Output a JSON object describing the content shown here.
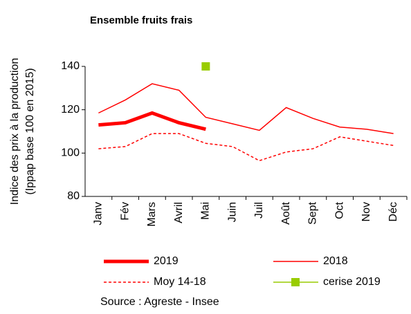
{
  "chart_data": {
    "type": "line",
    "title": "Ensemble fruits frais",
    "y_label": [
      "Indice des prix à la production",
      "(Ippap base 100 en 2015)"
    ],
    "categories": [
      "Janv",
      "Fév",
      "Mars",
      "Avril",
      "Mai",
      "Juin",
      "Juil",
      "Août",
      "Sept",
      "Oct",
      "Nov",
      "Déc"
    ],
    "series": [
      {
        "name": "2019",
        "color": "#ff0000",
        "linewidth": 5,
        "linestyle": "solid",
        "values": [
          113,
          114,
          118.5,
          114,
          111,
          null,
          null,
          null,
          null,
          null,
          null,
          null
        ]
      },
      {
        "name": "2018",
        "color": "#ff0000",
        "linewidth": 1.5,
        "linestyle": "solid",
        "values": [
          118.5,
          124.5,
          132,
          129,
          116.5,
          113.5,
          110.5,
          121,
          116,
          112,
          111,
          109
        ]
      },
      {
        "name": "Moy 14-18",
        "color": "#ff0000",
        "linewidth": 1.5,
        "linestyle": "dashed",
        "values": [
          102,
          103,
          109,
          109,
          104.5,
          103,
          96.5,
          100.5,
          102,
          107.5,
          105.5,
          103.5
        ]
      },
      {
        "name": "cerise 2019",
        "color": "#99cc00",
        "linewidth": 1.5,
        "linestyle": "none",
        "marker": "square",
        "values": [
          null,
          null,
          null,
          null,
          140,
          null,
          null,
          null,
          null,
          null,
          null,
          null
        ]
      }
    ],
    "ylim": [
      80,
      140
    ],
    "yticks": [
      80,
      100,
      120,
      140
    ],
    "source": "Source : Agreste - Insee"
  }
}
